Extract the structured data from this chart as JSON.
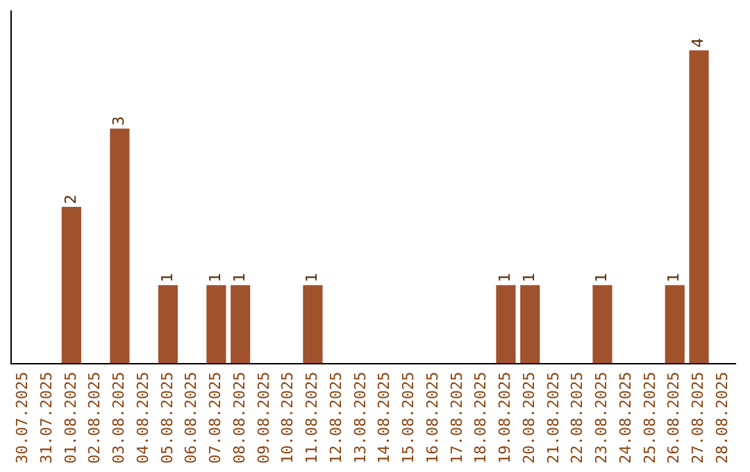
{
  "chart_data": {
    "type": "bar",
    "categories": [
      "30.07.2025",
      "31.07.2025",
      "01.08.2025",
      "02.08.2025",
      "03.08.2025",
      "04.08.2025",
      "05.08.2025",
      "06.08.2025",
      "07.08.2025",
      "08.08.2025",
      "09.08.2025",
      "10.08.2025",
      "11.08.2025",
      "12.08.2025",
      "13.08.2025",
      "14.08.2025",
      "15.08.2025",
      "16.08.2025",
      "17.08.2025",
      "18.08.2025",
      "19.08.2025",
      "20.08.2025",
      "21.08.2025",
      "22.08.2025",
      "23.08.2025",
      "24.08.2025",
      "25.08.2025",
      "26.08.2025",
      "27.08.2025",
      "28.08.2025"
    ],
    "values": [
      0,
      0,
      2,
      0,
      3,
      0,
      1,
      0,
      1,
      1,
      0,
      0,
      1,
      0,
      0,
      0,
      0,
      0,
      0,
      0,
      1,
      1,
      0,
      0,
      1,
      0,
      0,
      1,
      4,
      0
    ],
    "value_labels": [
      null,
      null,
      "2",
      null,
      "3",
      null,
      "1",
      null,
      "1",
      "1",
      null,
      null,
      "1",
      null,
      null,
      null,
      null,
      null,
      null,
      null,
      "1",
      "1",
      null,
      null,
      "1",
      null,
      null,
      "1",
      "4",
      null
    ],
    "color": "#a0522d",
    "grid": false,
    "legend": false,
    "tick_labels": "x"
  }
}
